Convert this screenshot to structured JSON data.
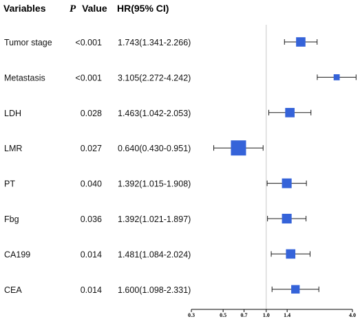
{
  "headers": {
    "variables": "Variables",
    "p_letter": "P",
    "p_value": "Value",
    "hr": "HR(95% CI)"
  },
  "colors": {
    "marker": "#3563d9",
    "whisker": "#1a1a1a",
    "reference_line": "#c8c8c8",
    "text": "#111111"
  },
  "chart_data": {
    "type": "forest",
    "title": "",
    "xlabel": "",
    "ylabel": "",
    "x_scale": "log",
    "reference_line": 1.0,
    "xlim": [
      0.3,
      4.0
    ],
    "xticks": [
      0.3,
      0.5,
      0.7,
      1.0,
      1.4,
      4.0
    ],
    "xtick_labels": [
      "0.3",
      "0.5",
      "0.7",
      "1.0",
      "1.4",
      "4.0"
    ],
    "grid": false,
    "rows": [
      {
        "variable": "Tumor stage",
        "p_value": "<0.001",
        "hr_text": "1.743(1.341-2.266)",
        "hr": 1.743,
        "lower": 1.341,
        "upper": 2.266,
        "weight": 0.62
      },
      {
        "variable": "Metastasis",
        "p_value": "<0.001",
        "hr_text": "3.105(2.272-4.242)",
        "hr": 3.105,
        "lower": 2.272,
        "upper": 4.242,
        "weight": 0.4
      },
      {
        "variable": "LDH",
        "p_value": "0.028",
        "hr_text": "1.463(1.042-2.053)",
        "hr": 1.463,
        "lower": 1.042,
        "upper": 2.053,
        "weight": 0.62
      },
      {
        "variable": "LMR",
        "p_value": "0.027",
        "hr_text": "0.640(0.430-0.951)",
        "hr": 0.64,
        "lower": 0.43,
        "upper": 0.951,
        "weight": 1.0
      },
      {
        "variable": "PT",
        "p_value": "0.040",
        "hr_text": "1.392(1.015-1.908)",
        "hr": 1.392,
        "lower": 1.015,
        "upper": 1.908,
        "weight": 0.64
      },
      {
        "variable": "Fbg",
        "p_value": "0.036",
        "hr_text": "1.392(1.021-1.897)",
        "hr": 1.392,
        "lower": 1.021,
        "upper": 1.897,
        "weight": 0.64
      },
      {
        "variable": "CA199",
        "p_value": "0.014",
        "hr_text": "1.481(1.084-2.024)",
        "hr": 1.481,
        "lower": 1.084,
        "upper": 2.024,
        "weight": 0.62
      },
      {
        "variable": "CEA",
        "p_value": "0.014",
        "hr_text": "1.600(1.098-2.331)",
        "hr": 1.6,
        "lower": 1.098,
        "upper": 2.331,
        "weight": 0.56
      }
    ]
  }
}
